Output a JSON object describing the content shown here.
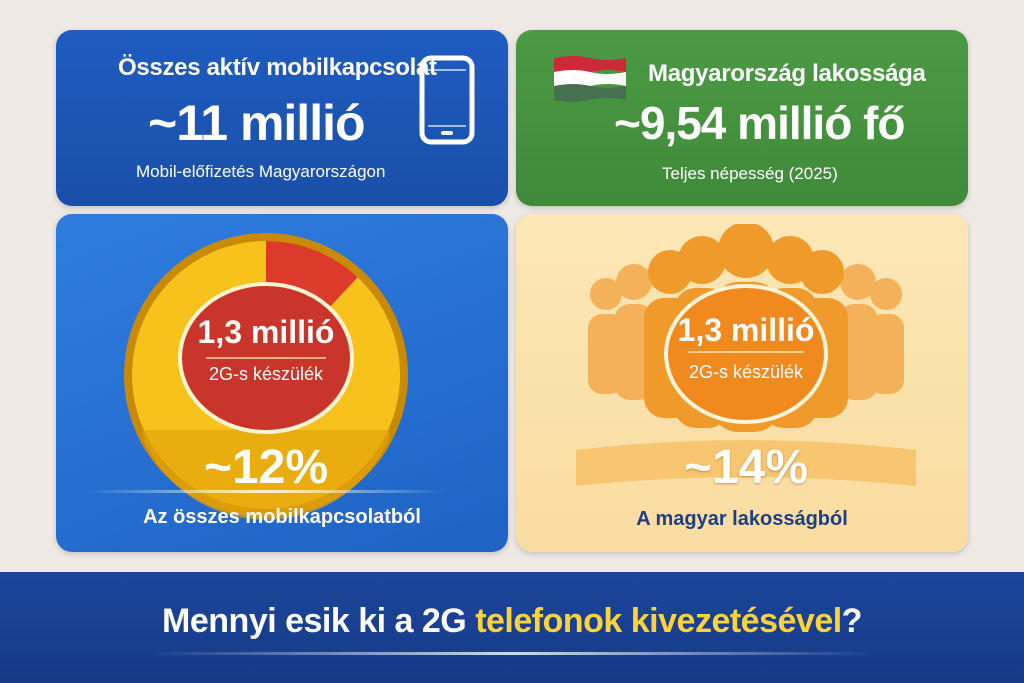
{
  "colors": {
    "background": "#efe9e6",
    "mobile_panel": "#1f5cc0",
    "population_panel": "#4c9a45",
    "pie_panel": "#2f7de0",
    "people_panel": "#fce7b6",
    "pie_yellow": "#f7c21b",
    "pie_red": "#dc3b2b",
    "people_orange": "#f19a2c",
    "headline_highlight": "#ffd23a",
    "bottom_banner": "#1c469c"
  },
  "mobile": {
    "title": "Összes aktív mobilkapcsolat",
    "value": "~11 millió",
    "subtitle": "Mobil-előfizetés Magyarországon",
    "icon": "smartphone-icon"
  },
  "population": {
    "title": "Magyarország lakossága",
    "value": "~9,54 millió fő",
    "subtitle": "Teljes népesség (2025)",
    "icon": "hungarian-flag-icon",
    "flag_colors": [
      "#ce2939",
      "#ffffff",
      "#477050"
    ]
  },
  "pie": {
    "center_value": "1,3 millió",
    "center_label": "2G-s készülék",
    "percent": "~12%",
    "caption": "Az összes mobilkapcsolatból",
    "share": 0.12
  },
  "people": {
    "center_value": "1,3 millió",
    "center_label": "2G-s készülék",
    "percent": "~14%",
    "caption": "A magyar lakosságból",
    "icon": "crowd-icon"
  },
  "headline": {
    "part1": "Mennyi esik ki a 2G ",
    "highlight": "telefonok kivezetésével",
    "end": "?"
  }
}
